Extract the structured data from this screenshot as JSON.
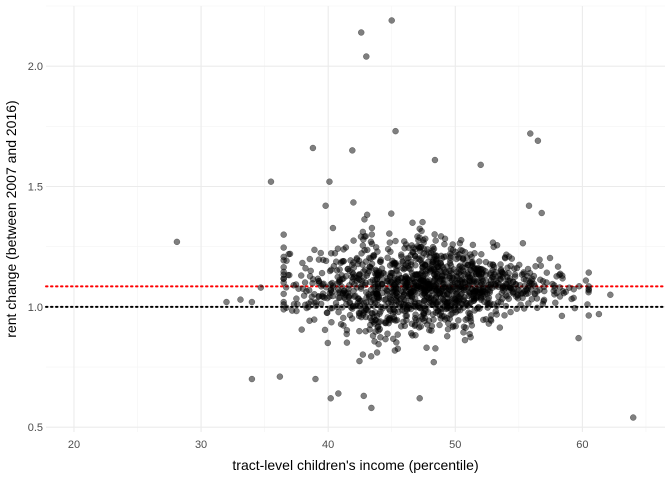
{
  "chart_data": {
    "type": "scatter",
    "title": "",
    "xlabel": "tract-level children's income (percentile)",
    "ylabel": "rent change (between 2007 and 2016)",
    "xlim": [
      17.8,
      66.5
    ],
    "ylim": [
      0.48,
      2.25
    ],
    "x_ticks": [
      20,
      30,
      40,
      50,
      60
    ],
    "x_tick_labels": [
      "20",
      "30",
      "40",
      "50",
      "60"
    ],
    "y_ticks": [
      0.5,
      1.0,
      1.5,
      2.0
    ],
    "y_tick_labels": [
      "0.5",
      "1.0",
      "1.5",
      "2.0"
    ],
    "grid": true,
    "theme": "minimal",
    "point_color": "#000000",
    "point_opacity": 0.5,
    "reference_lines": [
      {
        "y": 1.0,
        "color": "#000000",
        "style": "dotted"
      },
      {
        "y": 1.085,
        "color": "#ff0000",
        "style": "dotted"
      }
    ],
    "outlier_points": [
      {
        "x": 28.1,
        "y": 1.27
      },
      {
        "x": 32.0,
        "y": 1.02
      },
      {
        "x": 33.1,
        "y": 1.03
      },
      {
        "x": 34.0,
        "y": 1.02
      },
      {
        "x": 34.7,
        "y": 1.08
      },
      {
        "x": 35.5,
        "y": 1.52
      },
      {
        "x": 36.5,
        "y": 1.3
      },
      {
        "x": 37.0,
        "y": 1.22
      },
      {
        "x": 38.8,
        "y": 1.66
      },
      {
        "x": 39.8,
        "y": 1.42
      },
      {
        "x": 40.1,
        "y": 1.52
      },
      {
        "x": 41.9,
        "y": 1.65
      },
      {
        "x": 42.6,
        "y": 2.14
      },
      {
        "x": 43.0,
        "y": 2.04
      },
      {
        "x": 45.0,
        "y": 2.19
      },
      {
        "x": 45.3,
        "y": 1.73
      },
      {
        "x": 48.4,
        "y": 1.61
      },
      {
        "x": 52.0,
        "y": 1.59
      },
      {
        "x": 55.9,
        "y": 1.72
      },
      {
        "x": 56.5,
        "y": 1.69
      },
      {
        "x": 55.8,
        "y": 1.42
      },
      {
        "x": 56.8,
        "y": 1.39
      },
      {
        "x": 34.0,
        "y": 0.7
      },
      {
        "x": 36.2,
        "y": 0.71
      },
      {
        "x": 39.0,
        "y": 0.7
      },
      {
        "x": 40.2,
        "y": 0.62
      },
      {
        "x": 40.8,
        "y": 0.64
      },
      {
        "x": 42.8,
        "y": 0.63
      },
      {
        "x": 43.4,
        "y": 0.58
      },
      {
        "x": 47.2,
        "y": 0.62
      },
      {
        "x": 59.7,
        "y": 0.87
      },
      {
        "x": 60.4,
        "y": 1.01
      },
      {
        "x": 61.3,
        "y": 0.97
      },
      {
        "x": 62.2,
        "y": 1.05
      },
      {
        "x": 64.0,
        "y": 0.54
      }
    ],
    "cluster": {
      "n_points": 1300,
      "x_center": 47.5,
      "x_sd": 5.0,
      "x_range": [
        36.5,
        60.5
      ],
      "y_center": 1.085,
      "y_sd": 0.11,
      "y_range": [
        0.74,
        1.45
      ]
    }
  }
}
